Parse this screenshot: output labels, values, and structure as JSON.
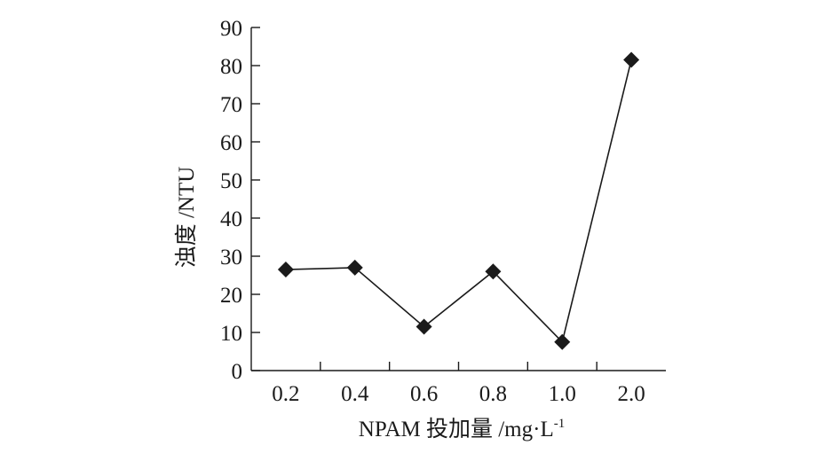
{
  "chart_data": {
    "type": "line",
    "categories": [
      "0.2",
      "0.4",
      "0.6",
      "0.8",
      "1.0",
      "2.0"
    ],
    "series": [
      {
        "values": [
          26.5,
          27,
          11.5,
          26,
          7.5,
          81.5
        ]
      }
    ],
    "xlabel": "NPAM 投加量 /mg·L",
    "xlabel_sup": "-1",
    "ylabel": "浊度 /NTU",
    "ylim": [
      0,
      90
    ],
    "yticks": [
      0,
      10,
      20,
      30,
      40,
      50,
      60,
      70,
      80,
      90
    ],
    "grid": false,
    "marker": "diamond",
    "colors": {
      "line": "#1a1a1a",
      "marker": "#1a1a1a"
    }
  }
}
